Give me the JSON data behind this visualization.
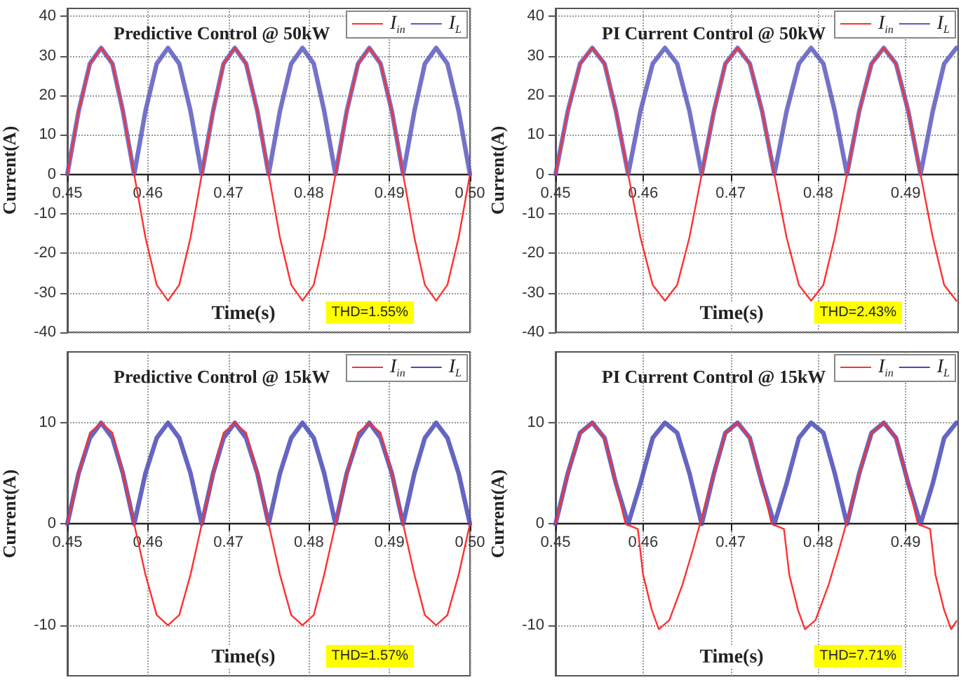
{
  "chart_data": [
    {
      "type": "line",
      "title": "Predictive Control @ 50kW",
      "xlabel": "Time(s)",
      "ylabel": "Current(A)",
      "annotations": [
        "THD=1.55%"
      ],
      "x": [
        0.45,
        0.4514,
        0.4528,
        0.4542,
        0.4556,
        0.4569,
        0.4583,
        0.4597,
        0.4611,
        0.4625,
        0.4639,
        0.4653,
        0.4667,
        0.4681,
        0.4694,
        0.4708,
        0.4722,
        0.4736,
        0.475,
        0.4764,
        0.4778,
        0.4792,
        0.4806,
        0.4819,
        0.4833,
        0.4847,
        0.4861,
        0.4875,
        0.4889,
        0.4903,
        0.4917,
        0.4931,
        0.4944,
        0.4958,
        0.4972,
        0.4986,
        0.5
      ],
      "xlim": [
        0.45,
        0.5
      ],
      "xticks": [
        0.45,
        0.46,
        0.47,
        0.48,
        0.49,
        {
          "value": 0.5,
          "label": "0.50"
        }
      ],
      "ylim": [
        -40,
        42
      ],
      "yticks": [
        -40,
        -30,
        -20,
        -10,
        0,
        10,
        20,
        30,
        40
      ],
      "grid": true,
      "legend": "top right",
      "marker": "none",
      "series": [
        {
          "name": "I$_{in}$",
          "color": "#ff3030",
          "values": [
            0,
            16,
            28,
            32,
            28,
            16,
            0,
            -16,
            -28,
            -32,
            -28,
            -16,
            0,
            16,
            28,
            32,
            28,
            16,
            0,
            -16,
            -28,
            -32,
            -28,
            -16,
            0,
            16,
            28,
            32,
            28,
            16,
            0,
            -16,
            -28,
            -32,
            -28,
            -16,
            0
          ]
        },
        {
          "name": "I$_{L}$",
          "color": "#5a5ac0",
          "values": [
            0,
            16,
            28,
            32,
            28,
            16,
            0,
            16,
            28,
            32,
            28,
            16,
            0,
            16,
            28,
            32,
            28,
            16,
            0,
            16,
            28,
            32,
            28,
            16,
            0,
            16,
            28,
            32,
            28,
            16,
            0,
            16,
            28,
            32,
            28,
            16,
            0
          ]
        }
      ]
    },
    {
      "type": "line",
      "title": "PI Current Control @ 50kW",
      "xlabel": "Time(s)",
      "ylabel": "Current(A)",
      "annotations": [
        "THD=2.43%"
      ],
      "x": [
        0.45,
        0.4514,
        0.4528,
        0.4542,
        0.4556,
        0.4569,
        0.4583,
        0.4597,
        0.4611,
        0.4625,
        0.4639,
        0.4653,
        0.4667,
        0.4681,
        0.4694,
        0.4708,
        0.4722,
        0.4736,
        0.475,
        0.4764,
        0.4778,
        0.4792,
        0.4806,
        0.4819,
        0.4833,
        0.4847,
        0.4861,
        0.4875,
        0.4889,
        0.4903,
        0.4917,
        0.4931,
        0.4944,
        0.4958
      ],
      "xlim": [
        0.45,
        0.496
      ],
      "xticks": [
        0.45,
        0.46,
        0.47,
        0.48,
        0.49
      ],
      "ylim": [
        -40,
        42
      ],
      "yticks": [
        -40,
        -30,
        -20,
        -10,
        0,
        10,
        20,
        30,
        40
      ],
      "grid": true,
      "legend": "top right",
      "marker": "none",
      "series": [
        {
          "name": "I$_{in}$",
          "color": "#ff3030",
          "values": [
            0,
            16,
            28,
            32,
            28,
            16,
            0,
            -16,
            -28,
            -32,
            -28,
            -16,
            0,
            16,
            28,
            32,
            28,
            16,
            0,
            -16,
            -28,
            -32,
            -28,
            -16,
            0,
            16,
            28,
            32,
            28,
            16,
            0,
            -16,
            -28,
            -32
          ]
        },
        {
          "name": "I$_{L}$",
          "color": "#5a5ac0",
          "values": [
            0,
            16,
            28,
            32,
            28,
            16,
            0,
            16,
            28,
            32,
            28,
            16,
            0,
            16,
            28,
            32,
            28,
            16,
            0,
            16,
            28,
            32,
            28,
            16,
            0,
            16,
            28,
            32,
            28,
            16,
            0,
            16,
            28,
            32
          ]
        }
      ]
    },
    {
      "type": "line",
      "title": "Predictive Control @ 15kW",
      "xlabel": "Time(s)",
      "ylabel": "Current(A)",
      "annotations": [
        "THD=1.57%"
      ],
      "x": [
        0.45,
        0.4514,
        0.4528,
        0.4542,
        0.4556,
        0.4569,
        0.4583,
        0.4597,
        0.4611,
        0.4625,
        0.4639,
        0.4653,
        0.4667,
        0.4681,
        0.4694,
        0.4708,
        0.4722,
        0.4736,
        0.475,
        0.4764,
        0.4778,
        0.4792,
        0.4806,
        0.4819,
        0.4833,
        0.4847,
        0.4861,
        0.4875,
        0.4889,
        0.4903,
        0.4917,
        0.4931,
        0.4944,
        0.4958,
        0.4972,
        0.4986,
        0.5
      ],
      "xlim": [
        0.45,
        0.5
      ],
      "xticks": [
        0.45,
        0.46,
        0.47,
        0.48,
        0.49,
        {
          "value": 0.5,
          "label": "0.50"
        }
      ],
      "ylim": [
        -15,
        17
      ],
      "yticks": [
        -10,
        0,
        10
      ],
      "grid": true,
      "legend": "top right",
      "marker": "none",
      "series": [
        {
          "name": "I$_{in}$",
          "color": "#ff3030",
          "values": [
            0,
            5,
            9,
            10,
            9,
            5,
            0,
            -5,
            -9,
            -10,
            -9,
            -5,
            0,
            5,
            9,
            10,
            9,
            5,
            0,
            -5,
            -9,
            -10,
            -9,
            -5,
            0,
            5,
            9,
            10,
            9,
            5,
            0,
            -5,
            -9,
            -10,
            -9,
            -5,
            0
          ]
        },
        {
          "name": "I$_{L}$",
          "color": "#4a4ab8",
          "values": [
            0,
            5,
            8.5,
            10,
            8.5,
            5,
            0,
            5,
            8.5,
            10,
            8.5,
            5,
            0,
            5,
            8.5,
            10,
            8.5,
            5,
            0,
            5,
            8.5,
            10,
            8.5,
            5,
            0,
            5,
            8.5,
            10,
            8.5,
            5,
            0,
            5,
            8.5,
            10,
            8.5,
            5,
            0
          ]
        }
      ]
    },
    {
      "type": "line",
      "title": "PI Current Control @ 15kW",
      "xlabel": "Time(s)",
      "ylabel": "Current(A)",
      "annotations": [
        "THD=7.71%"
      ],
      "x": [
        0.45,
        0.4514,
        0.4528,
        0.4542,
        0.4556,
        0.4569,
        0.4583,
        0.4597,
        0.4611,
        0.4625,
        0.4639,
        0.4653,
        0.4667,
        0.4681,
        0.4694,
        0.4708,
        0.4722,
        0.4736,
        0.475,
        0.4764,
        0.4778,
        0.4792,
        0.4806,
        0.4819,
        0.4833,
        0.4847,
        0.4861,
        0.4875,
        0.4889,
        0.4903,
        0.4917,
        0.4931,
        0.4944,
        0.4958
      ],
      "xlim": [
        0.45,
        0.496
      ],
      "xticks": [
        0.45,
        0.46,
        0.47,
        0.48,
        0.49
      ],
      "ylim": [
        -15,
        17
      ],
      "yticks": [
        -10,
        0,
        10
      ],
      "grid": true,
      "legend": "top right",
      "marker": "none",
      "series": [
        {
          "name": "I$_{in}$",
          "color": "#ff3030",
          "x": [
            0.45,
            0.4514,
            0.4528,
            0.4542,
            0.4556,
            0.4569,
            0.458,
            0.4594,
            0.46,
            0.461,
            0.4618,
            0.463,
            0.4645,
            0.4657,
            0.4665,
            0.4681,
            0.4694,
            0.4708,
            0.4722,
            0.4736,
            0.4747,
            0.4761,
            0.4767,
            0.4777,
            0.4785,
            0.4797,
            0.4812,
            0.4824,
            0.4832,
            0.4847,
            0.4861,
            0.4875,
            0.4889,
            0.4903,
            0.4914,
            0.4928,
            0.4934,
            0.4944,
            0.4952,
            0.4958
          ],
          "values": [
            0,
            5,
            9,
            10,
            8.5,
            4,
            0,
            -0.5,
            -5,
            -8.5,
            -10.4,
            -9.5,
            -6,
            -2.5,
            0,
            5,
            9,
            10,
            8.5,
            4,
            0,
            -0.5,
            -5,
            -8.5,
            -10.4,
            -9.5,
            -6,
            -2.5,
            0,
            5,
            9,
            10,
            8.5,
            4,
            0,
            -0.5,
            -5,
            -8.5,
            -10.4,
            -9.6
          ]
        },
        {
          "name": "I$_{L}$",
          "color": "#4a4ab8",
          "values": [
            0,
            5,
            9,
            10,
            8.5,
            4,
            0,
            4,
            8.5,
            10,
            9,
            5,
            0,
            5,
            9,
            10,
            8.5,
            4,
            0,
            4,
            8.5,
            10,
            9,
            5,
            0,
            5,
            9,
            10,
            8.5,
            4,
            0,
            4,
            8.5,
            10
          ]
        }
      ]
    }
  ]
}
